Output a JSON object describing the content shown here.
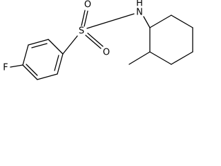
{
  "atoms": [
    {
      "label": "F"
    },
    {
      "label": "S"
    },
    {
      "label": "O"
    },
    {
      "label": "O"
    },
    {
      "label": "N"
    },
    {
      "label": "H"
    }
  ]
}
